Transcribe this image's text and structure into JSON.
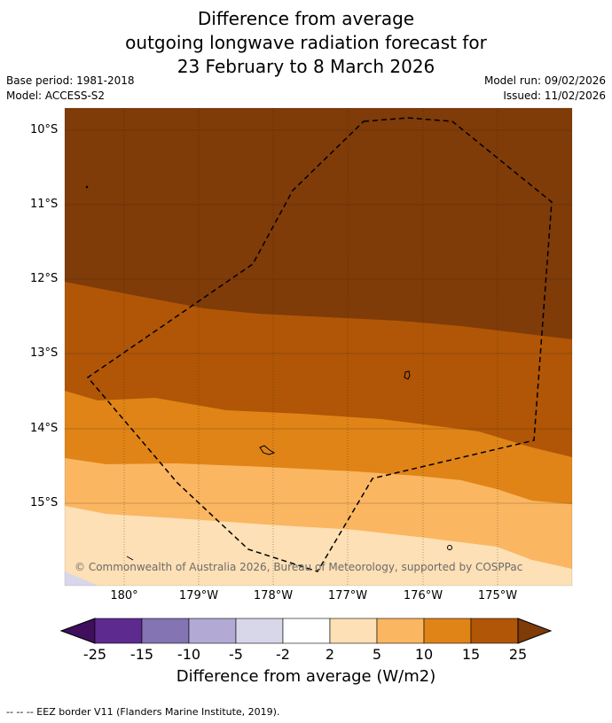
{
  "title": {
    "line1": "Difference from average",
    "line2": "outgoing longwave radiation forecast for",
    "line3": "23 February to 8 March 2026"
  },
  "meta": {
    "base_period": "Base period: 1981-2018",
    "model": "Model: ACCESS-S2",
    "model_run": "Model run: 09/02/2026",
    "issued": "Issued: 11/02/2026"
  },
  "map": {
    "lat_labels": [
      "10°S",
      "11°S",
      "12°S",
      "13°S",
      "14°S",
      "15°S"
    ],
    "lon_labels": [
      "180°",
      "179°W",
      "178°W",
      "177°W",
      "176°W",
      "175°W"
    ],
    "copyright": "© Commonwealth of Australia 2026, Bureau of Meteorology, supported by COSPPac",
    "eez_border": "dashed black polygon"
  },
  "colorbar": {
    "labels": [
      "-25",
      "-15",
      "-10",
      "-5",
      "-2",
      "2",
      "5",
      "10",
      "15",
      "25"
    ],
    "colors": [
      "#3f0f5e",
      "#5d2a8f",
      "#8474b3",
      "#b2aad5",
      "#d8d7ea",
      "#ffffff",
      "#fde0b5",
      "#fbb662",
      "#e08417",
      "#b05606",
      "#7f3b08"
    ],
    "title": "Difference from average (W/m2)"
  },
  "footer": "--  --  -- EEZ border V11 (Flanders Marine Institute, 2019)."
}
